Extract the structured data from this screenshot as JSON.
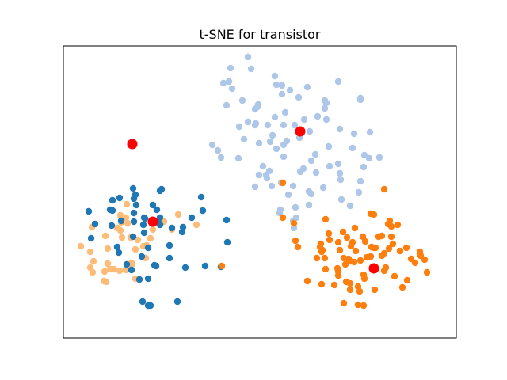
{
  "chart_data": {
    "type": "scatter",
    "title": "t-SNE for transistor",
    "xlabel": "",
    "ylabel": "",
    "xlim": [
      0,
      496
    ],
    "ylim": [
      0,
      369
    ],
    "axis_ticks": false,
    "grid": false,
    "colors": {
      "cluster_a": "#1f77b4",
      "cluster_b": "#aec7e8",
      "cluster_c": "#ff7f0e",
      "cluster_d": "#ffbb78",
      "centroid": "#ff0000"
    },
    "series": [
      {
        "key": "cluster_d",
        "points": [
          [
            22,
            116
          ],
          [
            34,
            109
          ],
          [
            36,
            140
          ],
          [
            53,
            129
          ],
          [
            68,
            139
          ],
          [
            56,
            113
          ],
          [
            52,
            84
          ],
          [
            59,
            87
          ],
          [
            54,
            71
          ],
          [
            38,
            97
          ],
          [
            34,
            89
          ],
          [
            37,
            83
          ],
          [
            51,
            72
          ],
          [
            56,
            94
          ],
          [
            64,
            87
          ],
          [
            71,
            85
          ],
          [
            86,
            92
          ],
          [
            86,
            95
          ],
          [
            91,
            75
          ],
          [
            79,
            86
          ],
          [
            73,
            146
          ],
          [
            74,
            127
          ],
          [
            80,
            169
          ],
          [
            91,
            112
          ],
          [
            72,
            155
          ],
          [
            72,
            136
          ],
          [
            79,
            152
          ],
          [
            85,
            127
          ],
          [
            81,
            145
          ],
          [
            101,
            116
          ],
          [
            105,
            117
          ],
          [
            104,
            101
          ],
          [
            94,
            124
          ],
          [
            113,
            137
          ],
          [
            127,
            147
          ],
          [
            137,
            137
          ],
          [
            110,
            126
          ],
          [
            145,
            156
          ],
          [
            168,
            143
          ]
        ]
      },
      {
        "key": "cluster_b",
        "points": [
          [
            233,
            355
          ],
          [
            211,
            341
          ],
          [
            237,
            340
          ],
          [
            267,
            331
          ],
          [
            276,
            319
          ],
          [
            308,
            317
          ],
          [
            347,
            324
          ],
          [
            202,
            322
          ],
          [
            209,
            324
          ],
          [
            206,
            294
          ],
          [
            213,
            315
          ],
          [
            226,
            300
          ],
          [
            246,
            295
          ],
          [
            276,
            308
          ],
          [
            269,
            320
          ],
          [
            297,
            304
          ],
          [
            286,
            313
          ],
          [
            330,
            290
          ],
          [
            330,
            300
          ],
          [
            267,
            279
          ],
          [
            280,
            285
          ],
          [
            245,
            292
          ],
          [
            242,
            289
          ],
          [
            242,
            269
          ],
          [
            258,
            269
          ],
          [
            278,
            269
          ],
          [
            304,
            276
          ],
          [
            321,
            280
          ],
          [
            332,
            276
          ],
          [
            332,
            297
          ],
          [
            375,
            303
          ],
          [
            375,
            301
          ],
          [
            367,
            258
          ],
          [
            349,
            264
          ],
          [
            365,
            240
          ],
          [
            387,
            260
          ],
          [
            380,
            231
          ],
          [
            399,
            228
          ],
          [
            379,
            216
          ],
          [
            386,
            227
          ],
          [
            347,
            220
          ],
          [
            319,
            209
          ],
          [
            299,
            210
          ],
          [
            290,
            192
          ],
          [
            260,
            211
          ],
          [
            257,
            202
          ],
          [
            247,
            206
          ],
          [
            275,
            196
          ],
          [
            278,
            229
          ],
          [
            303,
            214
          ],
          [
            313,
            224
          ],
          [
            278,
            244
          ],
          [
            269,
            239
          ],
          [
            243,
            271
          ],
          [
            222,
            267
          ],
          [
            228,
            251
          ],
          [
            233,
            273
          ],
          [
            247,
            246
          ],
          [
            261,
            248
          ],
          [
            264,
            256
          ],
          [
            282,
            249
          ],
          [
            298,
            253
          ],
          [
            292,
            269
          ],
          [
            311,
            261
          ],
          [
            318,
            232
          ],
          [
            335,
            242
          ],
          [
            336,
            217
          ],
          [
            349,
            208
          ],
          [
            350,
            200
          ],
          [
            375,
            198
          ],
          [
            373,
            184
          ],
          [
            362,
            167
          ],
          [
            351,
            175
          ],
          [
            310,
            185
          ],
          [
            284,
            181
          ],
          [
            252,
            217
          ],
          [
            256,
            206
          ],
          [
            313,
            182
          ],
          [
            328,
            190
          ],
          [
            293,
            165
          ],
          [
            310,
            168
          ],
          [
            263,
            192
          ],
          [
            294,
            152
          ],
          [
            291,
            139
          ],
          [
            290,
            148
          ],
          [
            274,
            162
          ],
          [
            273,
            158
          ],
          [
            242,
            191
          ],
          [
            221,
            227
          ],
          [
            195,
            237
          ],
          [
            199,
            228
          ],
          [
            188,
            244
          ]
        ]
      },
      {
        "key": "cluster_a",
        "points": [
          [
            32,
            160
          ],
          [
            35,
            126
          ],
          [
            40,
            144
          ],
          [
            62,
            174
          ],
          [
            71,
            177
          ],
          [
            91,
            181
          ],
          [
            88,
            189
          ],
          [
            89,
            176
          ],
          [
            92,
            168
          ],
          [
            89,
            158
          ],
          [
            89,
            147
          ],
          [
            73,
            148
          ],
          [
            61,
            142
          ],
          [
            62,
            161
          ],
          [
            59,
            162
          ],
          [
            88,
            128
          ],
          [
            70,
            108
          ],
          [
            68,
            115
          ],
          [
            80,
            93
          ],
          [
            86,
            86
          ],
          [
            117,
            91
          ],
          [
            107,
            75
          ],
          [
            96,
            74
          ],
          [
            107,
            41
          ],
          [
            110,
            41
          ],
          [
            100,
            46
          ],
          [
            144,
            46
          ],
          [
            134,
            101
          ],
          [
            122,
            152
          ],
          [
            118,
            162
          ],
          [
            113,
            168
          ],
          [
            102,
            152
          ],
          [
            124,
            188
          ],
          [
            122,
            186
          ],
          [
            107,
            114
          ],
          [
            103,
            151
          ],
          [
            134,
            117
          ],
          [
            101,
            143
          ],
          [
            150,
            134
          ],
          [
            151,
            140
          ],
          [
            137,
            139
          ],
          [
            120,
            146
          ],
          [
            111,
            146
          ],
          [
            122,
            143
          ],
          [
            102,
            133
          ],
          [
            99,
            103
          ],
          [
            115,
            92
          ],
          [
            154,
            89
          ],
          [
            174,
            178
          ],
          [
            206,
            149
          ],
          [
            176,
            161
          ],
          [
            162,
            152
          ],
          [
            179,
            91
          ],
          [
            207,
            121
          ],
          [
            199,
            90
          ]
        ]
      },
      {
        "key": "cluster_c",
        "points": [
          [
            412,
            148
          ],
          [
            422,
            143
          ],
          [
            414,
            141
          ],
          [
            414,
            128
          ],
          [
            398,
            128
          ],
          [
            416,
            119
          ],
          [
            405,
            107
          ],
          [
            392,
            114
          ],
          [
            388,
            103
          ],
          [
            353,
            134
          ],
          [
            358,
            127
          ],
          [
            354,
            101
          ],
          [
            331,
            150
          ],
          [
            325,
            119
          ],
          [
            326,
            109
          ],
          [
            356,
            93
          ],
          [
            362,
            69
          ],
          [
            372,
            42
          ],
          [
            379,
            41
          ],
          [
            374,
            59
          ],
          [
            354,
            44
          ],
          [
            308,
            72
          ],
          [
            293,
            123
          ],
          [
            324,
            115
          ],
          [
            360,
            100
          ],
          [
            346,
            88
          ],
          [
            330,
            101
          ],
          [
            327,
            111
          ],
          [
            347,
            79
          ],
          [
            383,
            102
          ],
          [
            394,
            114
          ],
          [
            407,
            89
          ],
          [
            428,
            64
          ],
          [
            444,
            95
          ],
          [
            456,
            99
          ],
          [
            450,
            109
          ],
          [
            451,
            104
          ],
          [
            459,
            83
          ],
          [
            402,
            129
          ],
          [
            439,
            100
          ],
          [
            433,
            114
          ],
          [
            425,
            110
          ],
          [
            411,
            113
          ],
          [
            389,
            115
          ],
          [
            381,
            122
          ],
          [
            365,
            121
          ],
          [
            368,
            139
          ],
          [
            349,
            111
          ],
          [
            335,
            132
          ],
          [
            388,
            157
          ],
          [
            392,
            156
          ],
          [
            405,
            188
          ],
          [
            375,
            98
          ],
          [
            347,
            121
          ],
          [
            320,
            101
          ],
          [
            369,
            110
          ],
          [
            331,
            87
          ],
          [
            357,
            71
          ],
          [
            367,
            96
          ],
          [
            434,
            73
          ],
          [
            393,
            61
          ],
          [
            380,
            75
          ],
          [
            347,
            84
          ],
          [
            378,
            128
          ],
          [
            402,
            104
          ],
          [
            372,
            65
          ],
          [
            405,
            85
          ],
          [
            418,
            78
          ],
          [
            277,
            196
          ],
          [
            200,
            91
          ],
          [
            277,
            152
          ],
          [
            410,
            144
          ],
          [
            336,
            124
          ],
          [
            342,
            67
          ],
          [
            362,
            61
          ],
          [
            379,
            80
          ],
          [
            362,
            97
          ],
          [
            363,
            116
          ],
          [
            326,
            68
          ],
          [
            291,
            145
          ],
          [
            296,
            115
          ]
        ]
      },
      {
        "key": "centroid",
        "points": [
          [
            87,
            245
          ],
          [
            113,
            147
          ],
          [
            299,
            261
          ],
          [
            392,
            88
          ]
        ]
      }
    ]
  }
}
